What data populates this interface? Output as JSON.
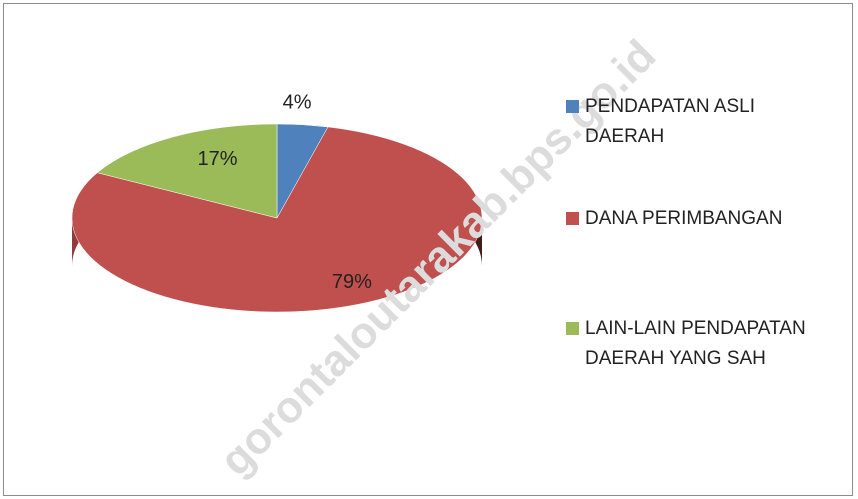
{
  "chart_data": {
    "type": "pie",
    "watermark": "gorontaloutarakab.bps.go.id",
    "series": [
      {
        "name": "PENDAPATAN ASLI DAERAH",
        "color": "#4f81bd",
        "values": [
          4
        ],
        "value_labels": [
          "4%"
        ]
      },
      {
        "name": "DANA PERIMBANGAN",
        "color": "#c0504d",
        "values": [
          79
        ],
        "value_labels": [
          "79%"
        ]
      },
      {
        "name": "LAIN-LAIN PENDAPATAN DAERAH YANG SAH",
        "color": "#9bbb59",
        "values": [
          17
        ],
        "value_labels": [
          "17%"
        ]
      }
    ],
    "legend": "right"
  }
}
